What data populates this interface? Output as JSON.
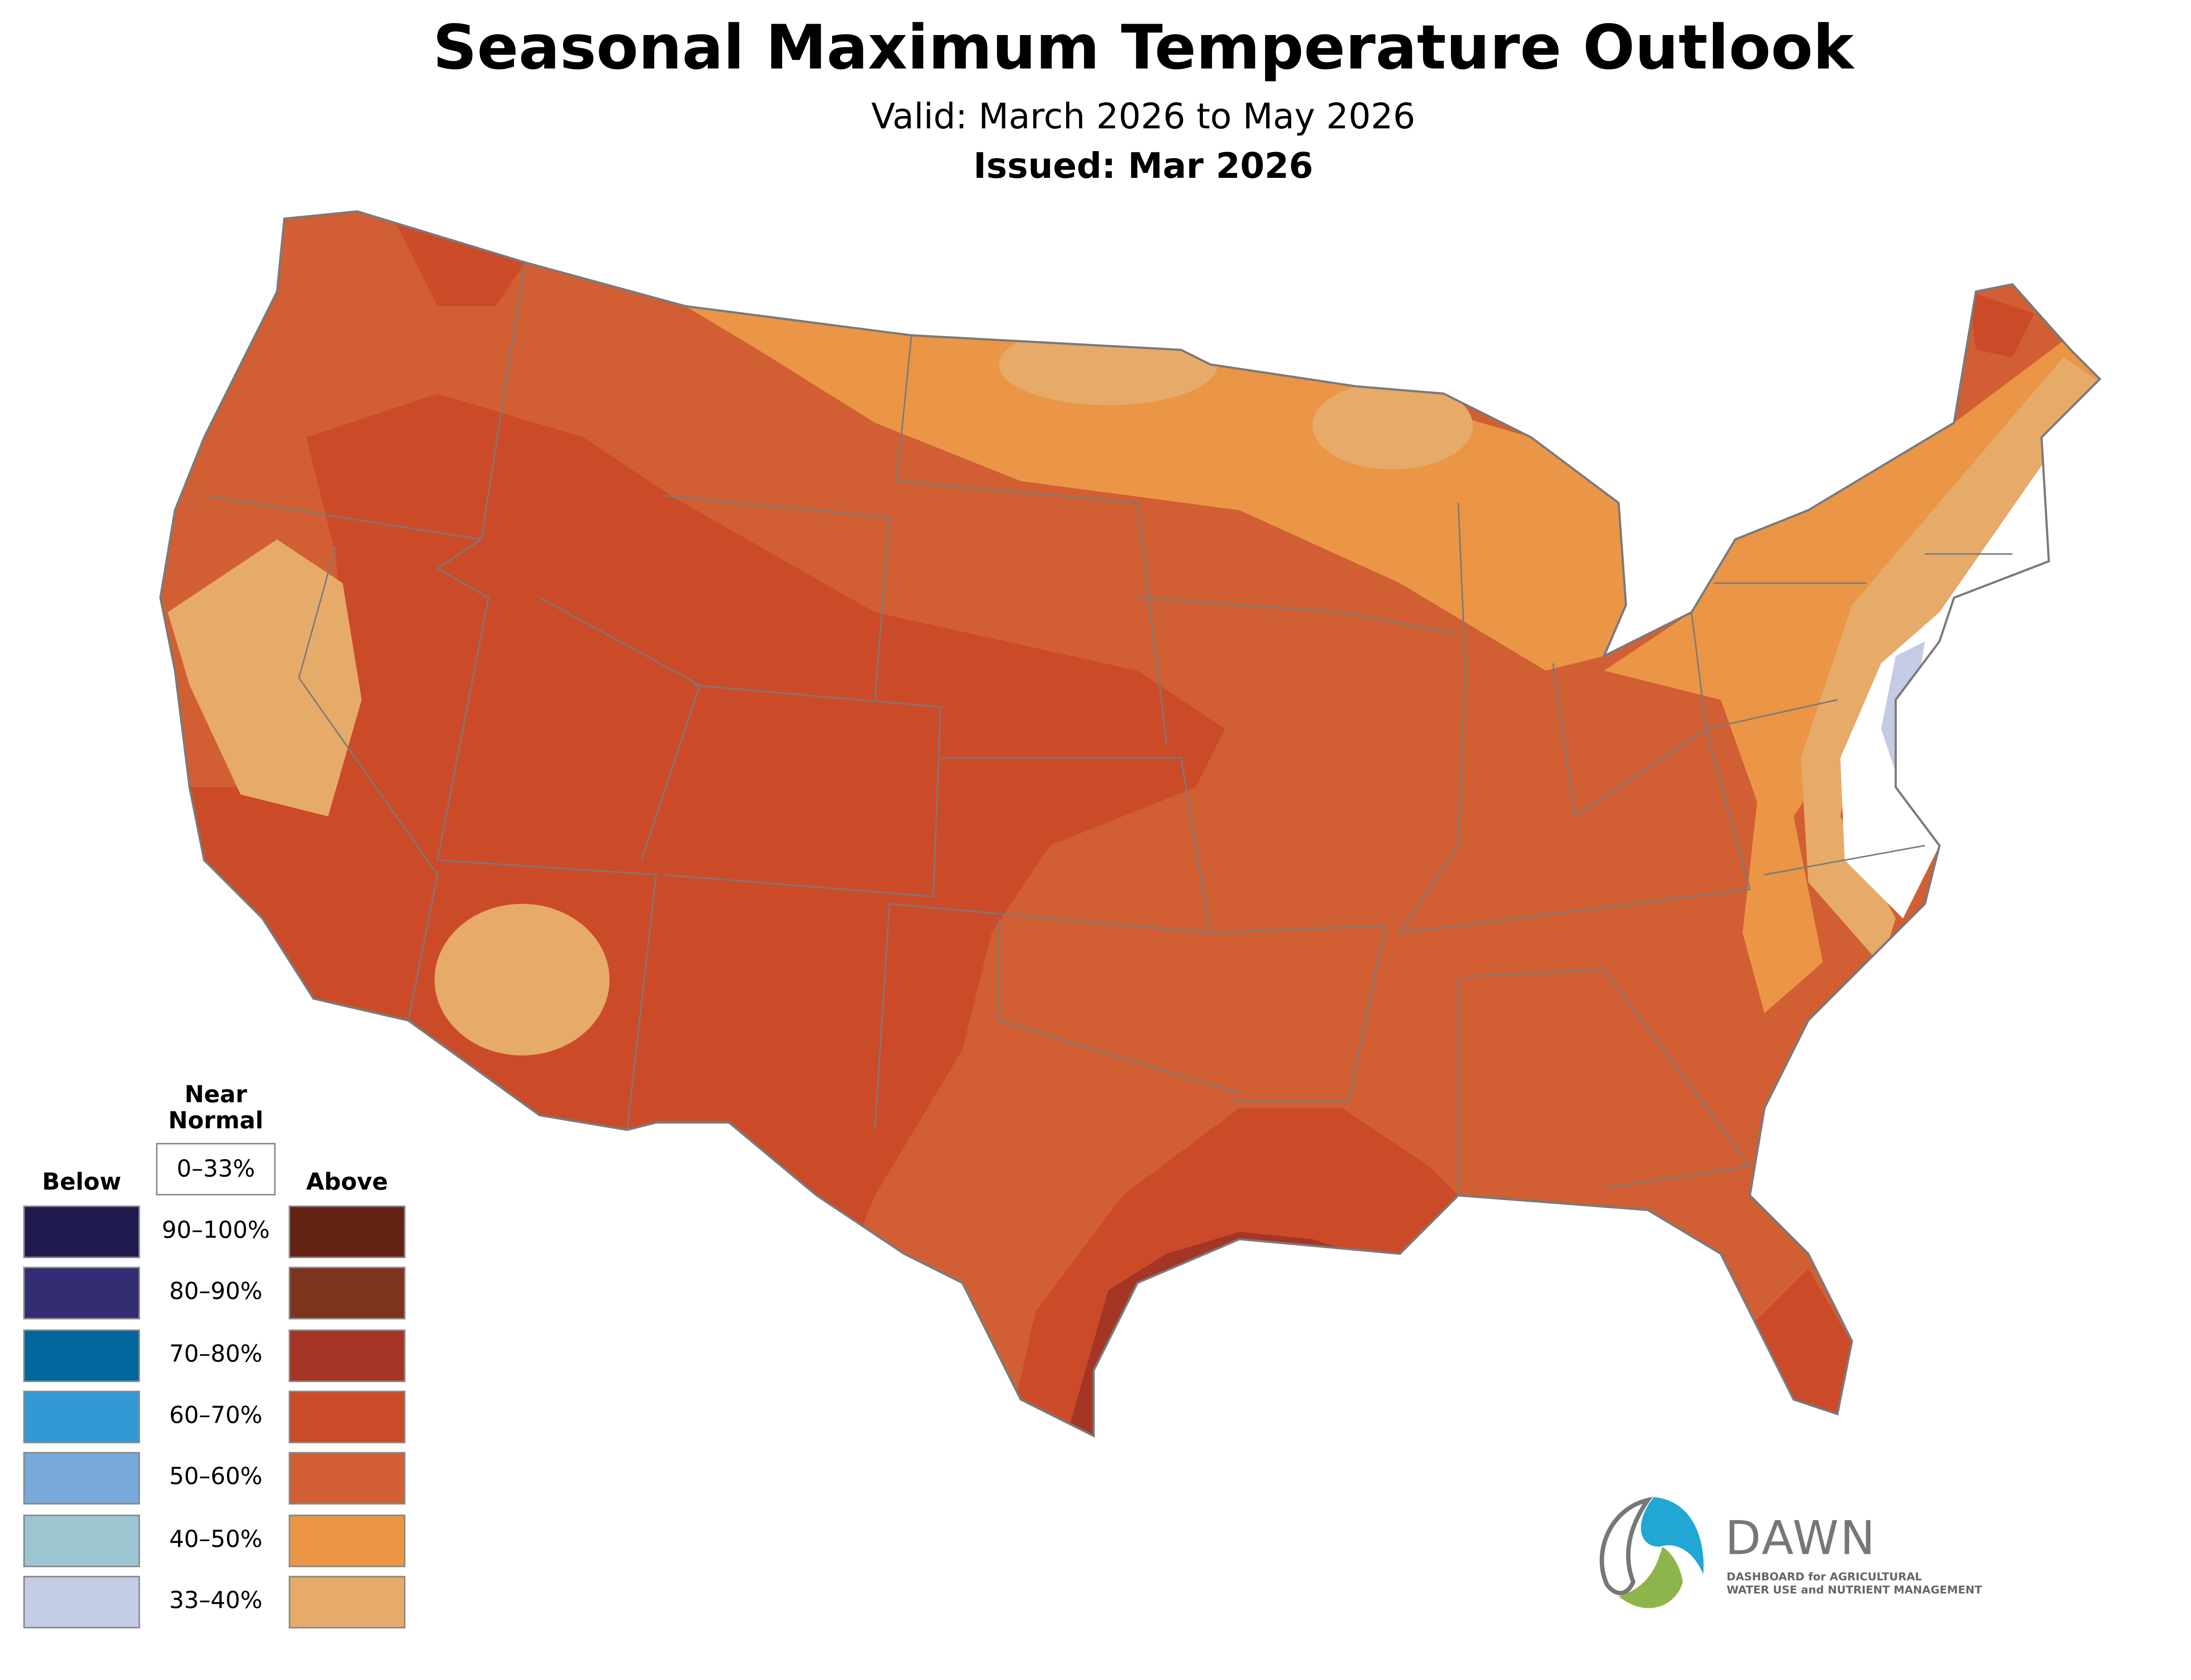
{
  "header": {
    "title": "Seasonal Maximum Temperature Outlook",
    "valid": "Valid: March 2026 to May 2026",
    "issued": "Issued: Mar 2026"
  },
  "legend": {
    "near_normal_title_1": "Near",
    "near_normal_title_2": "Normal",
    "near_normal_range": "0–33%",
    "below_label": "Below",
    "above_label": "Above",
    "rows": [
      {
        "range": "90–100%",
        "below_color": "#1f1b4f",
        "above_color": "#642312"
      },
      {
        "range": "80–90%",
        "below_color": "#332d73",
        "above_color": "#7d341d"
      },
      {
        "range": "70–80%",
        "below_color": "#00669c",
        "above_color": "#a53525"
      },
      {
        "range": "60–70%",
        "below_color": "#3399d4",
        "above_color": "#cb4b29"
      },
      {
        "range": "50–60%",
        "below_color": "#77a9db",
        "above_color": "#d15f33"
      },
      {
        "range": "40–50%",
        "below_color": "#9bc5d1",
        "above_color": "#ea9646"
      },
      {
        "range": "33–40%",
        "below_color": "#c4cbe4",
        "above_color": "#e6aa69"
      }
    ]
  },
  "logo": {
    "name": "DAWN",
    "line1": "DASHBOARD for AGRICULTURAL",
    "line2": "WATER USE and NUTRIENT MANAGEMENT"
  }
}
